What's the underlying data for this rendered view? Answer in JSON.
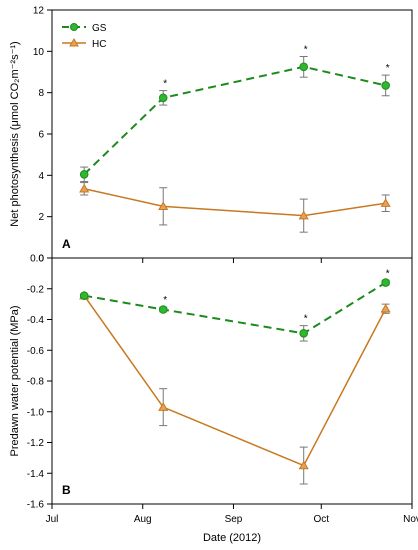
{
  "colors": {
    "GS": "#1e8a1e",
    "HC": "#c8781e",
    "GS_fill": "#2db82d",
    "HC_fill": "#e6a05a",
    "error_bar": "#777777"
  },
  "legend": {
    "gs": "GS",
    "hc": "HC",
    "placement": "top-left"
  },
  "xaxis": {
    "label": "Date (2012)",
    "ticks": [
      "Jul",
      "Aug",
      "Sep",
      "Oct",
      "Nov"
    ]
  },
  "chart_data": [
    {
      "type": "line",
      "panel_label": "A",
      "ylabel": "Net photosynthesis (μmol CO₂m⁻²s⁻¹)",
      "ylim": [
        0,
        12
      ],
      "yticks": [
        "0",
        "2",
        "4",
        "6",
        "8",
        "10",
        "12"
      ],
      "xlim": [
        "2012-07-01",
        "2012-11-01"
      ],
      "x": [
        "2012-07-12",
        "2012-08-08",
        "2012-09-25",
        "2012-10-23"
      ],
      "series": [
        {
          "name": "GS",
          "values": [
            4.05,
            7.75,
            9.25,
            8.35
          ],
          "errors": [
            0.35,
            0.35,
            0.5,
            0.5
          ],
          "significant": [
            false,
            true,
            true,
            true
          ]
        },
        {
          "name": "HC",
          "values": [
            3.35,
            2.5,
            2.05,
            2.65
          ],
          "errors": [
            0.3,
            0.9,
            0.8,
            0.4
          ]
        }
      ],
      "significance_marker": "*"
    },
    {
      "type": "line",
      "panel_label": "B",
      "ylabel": "Predawn water potential (MPa)",
      "ylim": [
        -1.6,
        0.0
      ],
      "yticks": [
        "0.0",
        "-0.2",
        "-0.4",
        "-0.6",
        "-0.8",
        "-1.0",
        "-1.2",
        "-1.4",
        "-1.6"
      ],
      "xlim": [
        "2012-07-01",
        "2012-11-01"
      ],
      "x": [
        "2012-07-12",
        "2012-08-08",
        "2012-09-25",
        "2012-10-23"
      ],
      "series": [
        {
          "name": "GS",
          "values": [
            -0.245,
            -0.335,
            -0.49,
            -0.16
          ],
          "errors": [
            0.01,
            0.015,
            0.05,
            0.015
          ],
          "significant": [
            false,
            true,
            true,
            true
          ]
        },
        {
          "name": "HC",
          "values": [
            -0.245,
            -0.97,
            -1.35,
            -0.33
          ],
          "errors": [
            0.01,
            0.12,
            0.12,
            0.03
          ]
        }
      ],
      "significance_marker": "*"
    }
  ]
}
